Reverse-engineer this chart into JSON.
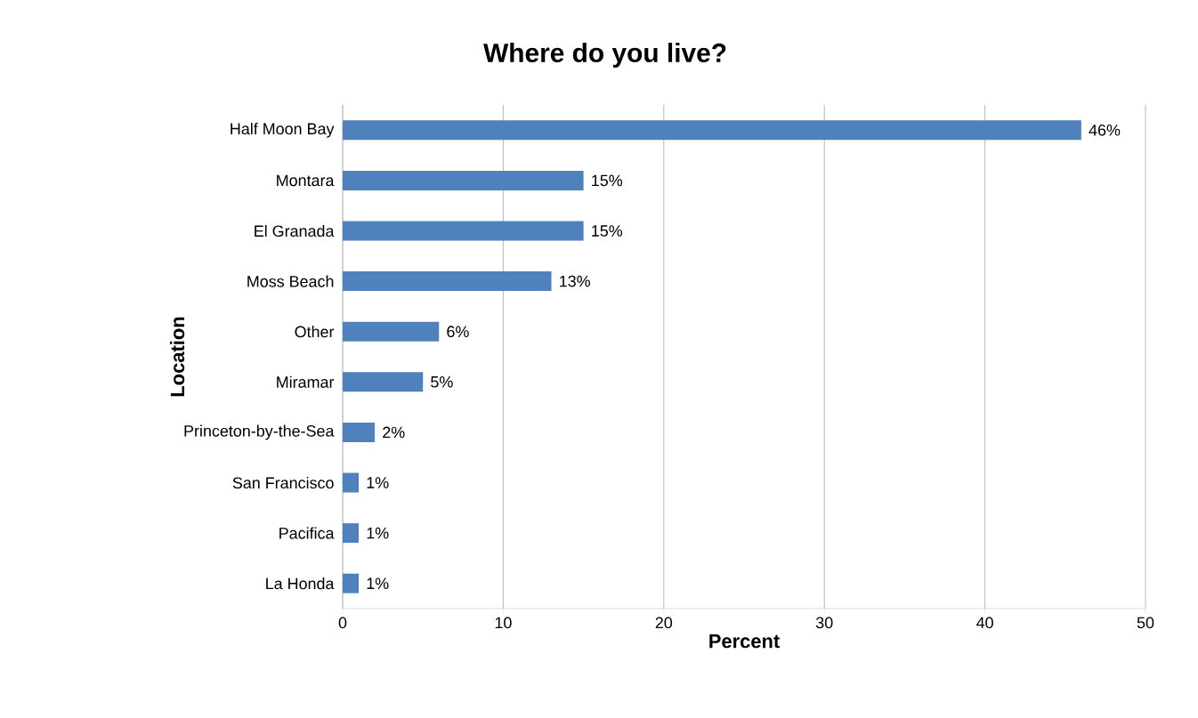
{
  "chart_data": {
    "type": "bar",
    "orientation": "horizontal",
    "title": "Where do you live?",
    "xlabel": "Percent",
    "ylabel": "Location",
    "categories": [
      "Half Moon Bay",
      "Montara",
      "El Granada",
      "Moss Beach",
      "Other",
      "Miramar",
      "Princeton-by-the-Sea",
      "San Francisco",
      "Pacifica",
      "La Honda"
    ],
    "values": [
      46,
      15,
      15,
      13,
      6,
      5,
      2,
      1,
      1,
      1
    ],
    "value_labels": [
      "46%",
      "15%",
      "15%",
      "13%",
      "6%",
      "5%",
      "2%",
      "1%",
      "1%",
      "1%"
    ],
    "color": "#4f81bd",
    "xlim": [
      0,
      50
    ],
    "xticks": [
      0,
      10,
      20,
      30,
      40,
      50
    ],
    "grid": "x"
  }
}
